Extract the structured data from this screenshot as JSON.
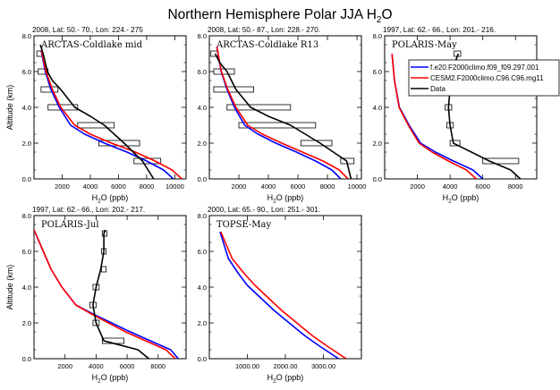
{
  "figure": {
    "title": "Northern Hemisphere Polar JJA H",
    "title_sub": "2",
    "title_tail": "O"
  },
  "legend": {
    "placement": "top-right of panel 3",
    "entries": [
      {
        "label": "f.e20.F2000climo.f09_f09.297.001",
        "color": "#0000ff"
      },
      {
        "label": "CESM2.F2000climo.C96.C96.mg11",
        "color": "#ff0000"
      },
      {
        "label": "Data",
        "color": "#000000"
      }
    ]
  },
  "chart_data": [
    {
      "type": "line",
      "header": "2008, Lat:  50.- 70., Lon: 224.- 275",
      "title": "ARCTAS-Coldlake mid",
      "xlabel": "H2O (ppb)",
      "ylabel": "Altitude (km)",
      "xlim": [
        0,
        10800
      ],
      "ylim": [
        0,
        8
      ],
      "xticks": [
        "2000",
        "4000",
        "6000",
        "8000",
        "10000"
      ],
      "xtick_values": [
        2000,
        4000,
        6000,
        8000,
        10000
      ],
      "yticks": [
        "0.0",
        "2.0",
        "4.0",
        "6.0",
        "8.0"
      ],
      "grid": false,
      "series": [
        {
          "name": "f.e20.F2000climo.f09_f09.297.001",
          "color": "#0000ff",
          "x": [
            9900,
            9200,
            8000,
            6600,
            5000,
            3600,
            2600,
            1800,
            1200,
            800,
            500
          ],
          "y": [
            0,
            0.5,
            1,
            1.5,
            2,
            2.5,
            3,
            4,
            5,
            6,
            7.2
          ]
        },
        {
          "name": "CESM2.F2000climo.C96.C96.mg11",
          "color": "#ff0000",
          "x": [
            10500,
            9800,
            8600,
            7200,
            5500,
            4000,
            2900,
            1900,
            1300,
            850,
            520
          ],
          "y": [
            0,
            0.5,
            1,
            1.5,
            2,
            2.5,
            3,
            4,
            5,
            6,
            7.2
          ]
        },
        {
          "name": "Data",
          "color": "#000000",
          "x": [
            8500,
            7700,
            6400,
            5000,
            4000,
            2900,
            1900,
            1300,
            950,
            650,
            450
          ],
          "y": [
            0,
            1,
            2,
            3,
            3.5,
            4,
            5,
            5.5,
            6,
            7,
            7.5
          ]
        }
      ],
      "boxes": [
        {
          "y": 1,
          "x": [
            7100,
            9000
          ]
        },
        {
          "y": 2,
          "x": [
            4600,
            7500
          ]
        },
        {
          "y": 3,
          "x": [
            3100,
            5700
          ]
        },
        {
          "y": 4,
          "x": [
            1000,
            3100
          ]
        },
        {
          "y": 5,
          "x": [
            500,
            1700
          ]
        },
        {
          "y": 6,
          "x": [
            300,
            1000
          ]
        },
        {
          "y": 7,
          "x": [
            200,
            600
          ]
        }
      ]
    },
    {
      "type": "line",
      "header": "2008, Lat:  50.- 87., Lon: 228.- 270.",
      "title": "ARCTAS-Coldlake R13",
      "xlabel": "H2O (ppb)",
      "ylabel": "",
      "xlim": [
        0,
        10300
      ],
      "ylim": [
        0,
        8
      ],
      "xticks": [
        "2000",
        "4000",
        "6000",
        "8000",
        "10000"
      ],
      "xtick_values": [
        2000,
        4000,
        6000,
        8000,
        10000
      ],
      "yticks": [
        "0.0",
        "2.0",
        "4.0",
        "6.0",
        "8.0"
      ],
      "grid": false,
      "series": [
        {
          "name": "f.e20.F2000climo.f09_f09.297.001",
          "color": "#0000ff",
          "x": [
            8900,
            8300,
            7200,
            5900,
            4500,
            3300,
            2400,
            1700,
            1200,
            800,
            500
          ],
          "y": [
            0,
            0.5,
            1,
            1.5,
            2,
            2.5,
            3,
            4,
            5,
            6,
            7.4
          ]
        },
        {
          "name": "CESM2.F2000climo.C96.C96.mg11",
          "color": "#ff0000",
          "x": [
            9400,
            8800,
            7700,
            6300,
            4900,
            3600,
            2600,
            1800,
            1250,
            820,
            510
          ],
          "y": [
            0,
            0.5,
            1,
            1.5,
            2,
            2.5,
            3,
            4,
            5,
            6,
            7.4
          ]
        },
        {
          "name": "Data",
          "color": "#000000",
          "x": [
            9600,
            9300,
            7500,
            5500,
            4000,
            2800,
            1800,
            1200,
            700,
            400
          ],
          "y": [
            0,
            1,
            2,
            3,
            3.5,
            4,
            5,
            6,
            6.5,
            7
          ]
        }
      ],
      "boxes": [
        {
          "y": 1,
          "x": [
            8900,
            9800
          ]
        },
        {
          "y": 2,
          "x": [
            6200,
            8300
          ]
        },
        {
          "y": 3,
          "x": [
            2000,
            7200
          ]
        },
        {
          "y": 4,
          "x": [
            1200,
            5500
          ]
        },
        {
          "y": 5,
          "x": [
            300,
            3000
          ]
        },
        {
          "y": 6,
          "x": [
            300,
            1700
          ]
        },
        {
          "y": 7,
          "x": [
            100,
            600
          ]
        }
      ]
    },
    {
      "type": "line",
      "header": "1997, Lat:  62.- 66., Lon: 201.- 216.",
      "title": "POLARIS-May",
      "xlabel": "H2O (ppb)",
      "ylabel": "",
      "xlim": [
        0,
        9300
      ],
      "ylim": [
        0,
        8
      ],
      "xticks": [
        "2000",
        "4000",
        "6000",
        "8000"
      ],
      "xtick_values": [
        2000,
        4000,
        6000,
        8000
      ],
      "yticks": [
        "0.0",
        "2.0",
        "4.0",
        "6.0",
        "8.0"
      ],
      "grid": false,
      "series": [
        {
          "name": "f.e20.F2000climo.f09_f09.297.001",
          "color": "#0000ff",
          "x": [
            6000,
            5400,
            4200,
            3100,
            2200,
            1500,
            900,
            600,
            450
          ],
          "y": [
            0,
            0.5,
            1,
            1.5,
            2,
            3,
            4,
            5.5,
            7
          ]
        },
        {
          "name": "CESM2.F2000climo.C96.C96.mg11",
          "color": "#ff0000",
          "x": [
            5600,
            5000,
            3900,
            2900,
            2100,
            1450,
            880,
            600,
            450
          ],
          "y": [
            0,
            0.5,
            1,
            1.5,
            2,
            3,
            4,
            5.5,
            7
          ]
        },
        {
          "name": "Data",
          "color": "#000000",
          "x": [
            8300,
            7700,
            6400,
            4200,
            4000,
            3900,
            4000,
            4100,
            4300,
            4500
          ],
          "y": [
            0,
            0.5,
            1,
            2,
            3,
            4,
            5,
            6,
            6.5,
            7
          ]
        }
      ],
      "boxes": [
        {
          "y": 1,
          "x": [
            6000,
            8200
          ]
        },
        {
          "y": 2,
          "x": [
            4000,
            4600
          ]
        },
        {
          "y": 3,
          "x": [
            3800,
            4200
          ]
        },
        {
          "y": 4,
          "x": [
            3700,
            4100
          ]
        },
        {
          "y": 6,
          "x": [
            4000,
            4300
          ]
        },
        {
          "y": 7,
          "x": [
            4250,
            4650
          ]
        }
      ]
    },
    {
      "type": "line",
      "header": "1997, Lat:  62.- 66., Lon: 202.- 217.",
      "title": "POLARIS-Jul",
      "xlabel": "H2O (ppb)",
      "ylabel": "Altitude (km)",
      "xlim": [
        0,
        9800
      ],
      "ylim": [
        0,
        8
      ],
      "xticks": [
        "2000",
        "4000",
        "6000",
        "8000"
      ],
      "xtick_values": [
        2000,
        4000,
        6000,
        8000
      ],
      "yticks": [
        "0.0",
        "2.0",
        "4.0",
        "6.0",
        "8.0"
      ],
      "grid": false,
      "series": [
        {
          "name": "f.e20.F2000climo.f09_f09.297.001",
          "color": "#0000ff",
          "x": [
            9300,
            8800,
            7500,
            6200,
            5000,
            3800,
            2700,
            1800,
            1100,
            600,
            0
          ],
          "y": [
            0,
            0.5,
            1,
            1.5,
            2,
            2.5,
            3,
            4,
            5,
            6,
            7.2
          ]
        },
        {
          "name": "CESM2.F2000climo.C96.C96.mg11",
          "color": "#ff0000",
          "x": [
            9100,
            8500,
            7200,
            5900,
            4800,
            3700,
            2700,
            1800,
            1100,
            600,
            0
          ],
          "y": [
            0,
            0.5,
            1,
            1.5,
            2,
            2.5,
            3,
            4,
            5,
            6,
            7.2
          ]
        },
        {
          "name": "Data",
          "color": "#000000",
          "x": [
            7400,
            6700,
            4500,
            4000,
            3800,
            4000,
            4300,
            4500,
            4500,
            4500,
            4600
          ],
          "y": [
            0,
            0.5,
            1,
            2,
            3,
            4,
            5,
            6,
            6.5,
            7,
            7.2
          ]
        }
      ],
      "boxes": [
        {
          "y": 1,
          "x": [
            4400,
            5800
          ]
        },
        {
          "y": 2,
          "x": [
            3800,
            4200
          ]
        },
        {
          "y": 3,
          "x": [
            3600,
            4000
          ]
        },
        {
          "y": 4,
          "x": [
            3800,
            4200
          ]
        },
        {
          "y": 5,
          "x": [
            4350,
            4650
          ]
        },
        {
          "y": 6,
          "x": [
            4350,
            4650
          ]
        },
        {
          "y": 7,
          "x": [
            4400,
            4700
          ]
        }
      ]
    },
    {
      "type": "line",
      "header": "2000, Lat:  65.- 90., Lon: 251.- 301.",
      "title": "TOPSE-May",
      "xlabel": "H2O (ppb)",
      "ylabel": "",
      "xlim": [
        0,
        4000
      ],
      "ylim": [
        0,
        8
      ],
      "xticks": [
        "1000.00",
        "2000.00",
        "3000.00"
      ],
      "xtick_values": [
        1000,
        2000,
        3000
      ],
      "yticks": [
        "0.0",
        "2.0",
        "4.0",
        "6.0",
        "8.0"
      ],
      "grid": false,
      "series": [
        {
          "name": "f.e20.F2000climo.f09_f09.297.001",
          "color": "#0000ff",
          "x": [
            3400,
            2900,
            2500,
            2100,
            1700,
            1350,
            1000,
            750,
            500,
            280
          ],
          "y": [
            0,
            0.7,
            1.3,
            2,
            2.7,
            3.4,
            4.1,
            4.8,
            5.6,
            7.1
          ]
        },
        {
          "name": "CESM2.F2000climo.C96.C96.mg11",
          "color": "#ff0000",
          "x": [
            3600,
            3100,
            2700,
            2300,
            1900,
            1550,
            1200,
            900,
            600,
            300
          ],
          "y": [
            0,
            0.7,
            1.3,
            2,
            2.7,
            3.4,
            4.1,
            4.8,
            5.6,
            7.1
          ]
        }
      ],
      "boxes": []
    }
  ]
}
